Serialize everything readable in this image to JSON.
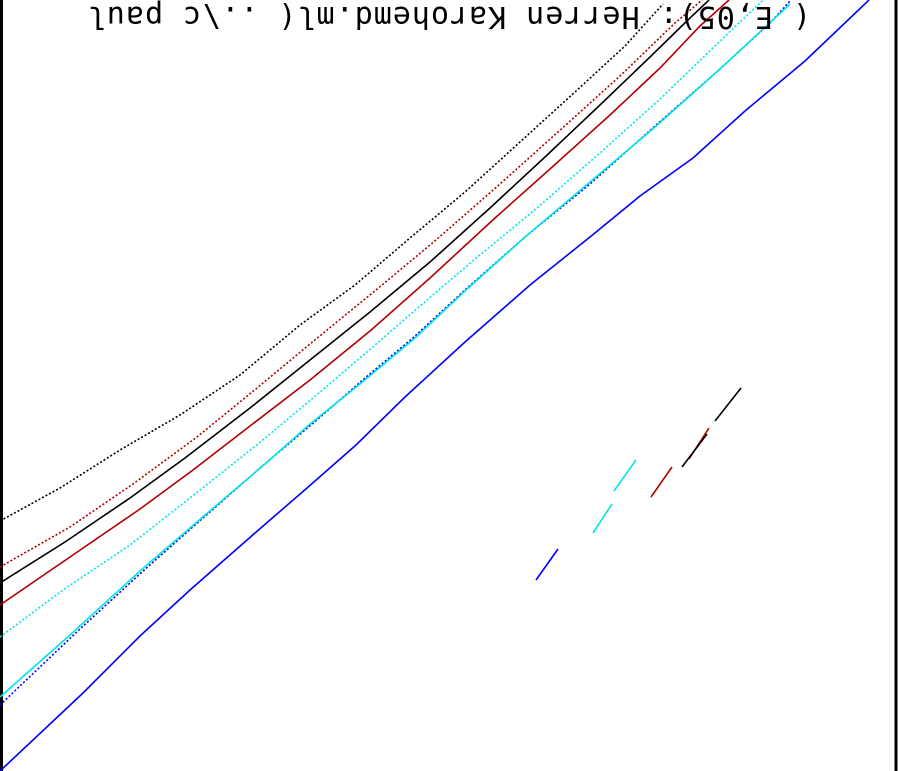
{
  "chart_data": {
    "type": "line",
    "title": "( E,05): Herren Karohemd.ml( ..\\c paul",
    "title_orientation": "rotated-180",
    "xlabel": "",
    "ylabel": "",
    "grid": false,
    "legend": "none",
    "series": [
      {
        "color": "#0000ff",
        "style": "solid",
        "points": [
          [
            0,
            771
          ],
          [
            83,
            693
          ],
          [
            140,
            636
          ],
          [
            190,
            590
          ],
          [
            255,
            533
          ],
          [
            307,
            488
          ],
          [
            356,
            445
          ],
          [
            405,
            397
          ],
          [
            465,
            342
          ],
          [
            530,
            285
          ],
          [
            590,
            237
          ],
          [
            640,
            196
          ],
          [
            693,
            158
          ],
          [
            745,
            111
          ],
          [
            805,
            61
          ],
          [
            869,
            0
          ]
        ],
        "marker": [
          [
            536,
            580
          ],
          [
            558,
            549
          ]
        ]
      },
      {
        "color": "#0000ff",
        "style": "dotted",
        "points": [
          [
            0,
            705
          ],
          [
            81,
            628
          ],
          [
            142,
            572
          ],
          [
            195,
            525
          ],
          [
            260,
            468
          ],
          [
            318,
            419
          ],
          [
            365,
            378
          ],
          [
            414,
            337
          ],
          [
            466,
            289
          ],
          [
            525,
            237
          ],
          [
            590,
            184
          ],
          [
            655,
            126
          ],
          [
            720,
            69
          ],
          [
            770,
            23
          ],
          [
            791,
            0
          ]
        ]
      },
      {
        "color": "#00e5e5",
        "style": "solid",
        "points": [
          [
            0,
            697
          ],
          [
            70,
            635
          ],
          [
            140,
            571
          ],
          [
            205,
            515
          ],
          [
            265,
            464
          ],
          [
            310,
            424
          ],
          [
            360,
            384
          ],
          [
            415,
            338
          ],
          [
            466,
            290
          ],
          [
            525,
            237
          ],
          [
            590,
            182
          ],
          [
            655,
            127
          ],
          [
            720,
            69
          ],
          [
            790,
            4
          ]
        ],
        "marker": [
          [
            593,
            533
          ],
          [
            612,
            504
          ]
        ]
      },
      {
        "color": "#00e5e5",
        "style": "dotted",
        "points": [
          [
            0,
            637
          ],
          [
            63,
            590
          ],
          [
            130,
            545
          ],
          [
            195,
            494
          ],
          [
            258,
            444
          ],
          [
            313,
            398
          ],
          [
            367,
            352
          ],
          [
            420,
            306
          ],
          [
            475,
            259
          ],
          [
            537,
            208
          ],
          [
            600,
            153
          ],
          [
            659,
            100
          ],
          [
            716,
            45
          ],
          [
            763,
            0
          ]
        ],
        "marker": [
          [
            614,
            491
          ],
          [
            636,
            460
          ]
        ]
      },
      {
        "color": "#b00000",
        "style": "solid",
        "points": [
          [
            0,
            605
          ],
          [
            70,
            557
          ],
          [
            140,
            509
          ],
          [
            193,
            470
          ],
          [
            250,
            426
          ],
          [
            310,
            380
          ],
          [
            370,
            331
          ],
          [
            430,
            278
          ],
          [
            495,
            218
          ],
          [
            550,
            169
          ],
          [
            610,
            115
          ],
          [
            660,
            68
          ],
          [
            700,
            26
          ],
          [
            729,
            0
          ]
        ],
        "marker": [
          [
            651,
            497
          ],
          [
            672,
            467
          ]
        ]
      },
      {
        "color": "#b00000",
        "style": "dotted",
        "points": [
          [
            0,
            567
          ],
          [
            70,
            527
          ],
          [
            133,
            484
          ],
          [
            197,
            437
          ],
          [
            257,
            388
          ],
          [
            316,
            339
          ],
          [
            376,
            290
          ],
          [
            436,
            240
          ],
          [
            500,
            184
          ],
          [
            558,
            132
          ],
          [
            620,
            76
          ],
          [
            675,
            23
          ],
          [
            702,
            0
          ]
        ],
        "marker": [
          [
            689,
            459
          ],
          [
            709,
            428
          ]
        ]
      },
      {
        "color": "#000000",
        "style": "solid",
        "points": [
          [
            0,
            583
          ],
          [
            65,
            542
          ],
          [
            130,
            498
          ],
          [
            185,
            458
          ],
          [
            250,
            408
          ],
          [
            310,
            360
          ],
          [
            370,
            312
          ],
          [
            430,
            262
          ],
          [
            490,
            208
          ],
          [
            545,
            157
          ],
          [
            600,
            105
          ],
          [
            650,
            57
          ],
          [
            690,
            18
          ],
          [
            709,
            0
          ]
        ],
        "marker": [
          [
            682,
            467
          ],
          [
            707,
            434
          ]
        ]
      },
      {
        "color": "#000000",
        "style": "dotted",
        "points": [
          [
            0,
            521
          ],
          [
            60,
            488
          ],
          [
            120,
            450
          ],
          [
            180,
            415
          ],
          [
            240,
            375
          ],
          [
            300,
            325
          ],
          [
            355,
            285
          ],
          [
            410,
            238
          ],
          [
            465,
            192
          ],
          [
            520,
            142
          ],
          [
            575,
            92
          ],
          [
            625,
            46
          ],
          [
            663,
            4
          ]
        ],
        "marker": [
          [
            715,
            421
          ],
          [
            741,
            388
          ]
        ]
      }
    ]
  }
}
